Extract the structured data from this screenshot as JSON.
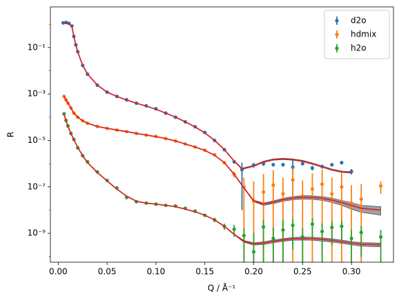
{
  "chart_data": {
    "type": "errorbar",
    "xlabel": "Q / Å⁻¹",
    "ylabel": "R",
    "log_y": true,
    "xlim": [
      -0.008,
      0.343
    ],
    "ylim": [
      5.7e-11,
      5.6
    ],
    "xticks": [
      {
        "value": 0,
        "label": "0.00"
      },
      0.05,
      {
        "value": 0.1,
        "label": "0.10"
      },
      0.15,
      {
        "value": 0.2,
        "label": "0.20"
      },
      0.25,
      {
        "value": 0.3,
        "label": "0.30"
      }
    ],
    "yticks": [
      {
        "value": 0.1,
        "label": "10⁻¹"
      },
      {
        "value": 0.001,
        "label": "10⁻³"
      },
      {
        "value": 1e-05,
        "label": "10⁻⁵"
      },
      {
        "value": 1e-07,
        "label": "10⁻⁷"
      },
      {
        "value": 1e-09,
        "label": "10⁻⁹"
      }
    ],
    "yminorticks": [
      1,
      0.01,
      0.0001,
      1e-06,
      1e-08,
      1e-10
    ],
    "legend": "upper right",
    "fit_color": "#d62728",
    "band_color": "#808080",
    "series": [
      {
        "name": "d2o",
        "color": "#1f77b4",
        "x": [
          0.005,
          0.008,
          0.011,
          0.014,
          0.016,
          0.018,
          0.02,
          0.025,
          0.03,
          0.04,
          0.05,
          0.06,
          0.07,
          0.08,
          0.09,
          0.1,
          0.11,
          0.12,
          0.13,
          0.14,
          0.15,
          0.16,
          0.17,
          0.18,
          0.188,
          0.2,
          0.21,
          0.22,
          0.23,
          0.24,
          0.25,
          0.26,
          0.27,
          0.28,
          0.29,
          0.3
        ],
        "values": [
          1.15,
          1.2,
          1.1,
          0.85,
          0.3,
          0.13,
          0.066,
          0.017,
          0.0071,
          0.0024,
          0.0012,
          0.00079,
          0.00056,
          0.0004,
          0.00031,
          0.00023,
          0.00015,
          0.0001,
          6.3e-05,
          3.9e-05,
          2.2e-05,
          1e-05,
          4e-06,
          1.2e-06,
          5.5e-07,
          8.7e-07,
          1e-06,
          9e-07,
          9e-07,
          7e-07,
          1e-06,
          6.5e-07,
          7.5e-07,
          9e-07,
          1.1e-06,
          4.6e-07
        ],
        "yerr": [
          0.15,
          0.15,
          0.1,
          0.05,
          0.02,
          0.008,
          0.003,
          0.0006,
          0.0002,
          6e-05,
          3e-05,
          2e-05,
          1.4e-05,
          1e-05,
          8e-06,
          6e-06,
          4e-06,
          3e-06,
          2e-06,
          1.2e-06,
          8e-07,
          4e-07,
          2e-07,
          1.2e-07,
          5.4e-07,
          2e-07,
          2e-07,
          1.5e-07,
          1.5e-07,
          6.9e-07,
          1.5e-07,
          1.5e-07,
          1.5e-07,
          1.5e-07,
          1.5e-07,
          1.2e-07
        ],
        "fit": [
          1.1,
          1.1,
          1.05,
          0.8,
          0.3,
          0.13,
          0.065,
          0.017,
          0.0072,
          0.0024,
          0.0012,
          0.00078,
          0.00055,
          0.0004,
          0.0003,
          0.00022,
          0.00015,
          0.0001,
          6.3e-05,
          3.8e-05,
          2.1e-05,
          1e-05,
          4e-06,
          1.3e-06,
          6e-07,
          8e-07,
          1.2e-06,
          1.5e-06,
          1.6e-06,
          1.5e-06,
          1.3e-06,
          1e-06,
          7.5e-07,
          5.5e-07,
          4.5e-07,
          4.2e-07
        ],
        "fit_err": [
          0.02,
          0.02,
          0.02,
          0.02,
          0.006,
          0.003,
          0.0013,
          0.0003,
          0.00014,
          5e-05,
          2.4e-05,
          1.6e-05,
          1.1e-05,
          8e-06,
          6e-06,
          4.4e-06,
          3e-06,
          2e-06,
          1.3e-06,
          8e-07,
          4e-07,
          2e-07,
          8e-08,
          5e-08,
          4e-08,
          5e-08,
          8e-08,
          1e-07,
          1.1e-07,
          1e-07,
          9e-08,
          7e-08,
          5e-08,
          4e-08,
          3e-08,
          3e-08
        ]
      },
      {
        "name": "hdmix",
        "color": "#ff7f0e",
        "x": [
          0.006,
          0.008,
          0.01,
          0.013,
          0.016,
          0.02,
          0.025,
          0.03,
          0.04,
          0.05,
          0.06,
          0.07,
          0.08,
          0.09,
          0.1,
          0.11,
          0.12,
          0.13,
          0.14,
          0.15,
          0.16,
          0.17,
          0.18,
          0.19,
          0.2,
          0.21,
          0.22,
          0.23,
          0.24,
          0.25,
          0.26,
          0.27,
          0.28,
          0.29,
          0.3,
          0.31,
          0.33
        ],
        "values": [
          0.00079,
          0.00055,
          0.0004,
          0.00025,
          0.00015,
          0.0001,
          7e-05,
          5.5e-05,
          4e-05,
          3.3e-05,
          2.8e-05,
          2.4e-05,
          2e-05,
          1.7e-05,
          1.5e-05,
          1.2e-05,
          9.5e-06,
          7e-06,
          5.2e-06,
          3.8e-06,
          2.4e-06,
          1.1e-06,
          3.5e-07,
          1e-07,
          2.5e-08,
          6e-08,
          1.2e-07,
          5e-08,
          2e-07,
          4e-08,
          8e-08,
          1.3e-07,
          5e-08,
          1e-07,
          2e-08,
          3e-08,
          1.1e-07
        ],
        "yerr": [
          0.00015,
          8e-05,
          5e-05,
          3e-05,
          1.5e-05,
          8e-06,
          5e-06,
          3e-06,
          2e-06,
          1.5e-06,
          1.2e-06,
          1e-06,
          9e-07,
          8e-07,
          7e-07,
          6e-07,
          5e-07,
          4e-07,
          3e-07,
          2.5e-07,
          2e-07,
          1.5e-07,
          1e-07,
          1.5e-07,
          1.5e-07,
          3e-07,
          4e-07,
          2e-07,
          5e-07,
          1.5e-07,
          3e-07,
          4e-07,
          2e-07,
          3e-07,
          1e-07,
          1e-07,
          6e-08
        ],
        "fit": [
          0.0008,
          0.00056,
          0.0004,
          0.00025,
          0.00015,
          0.0001,
          7e-05,
          5.5e-05,
          4e-05,
          3.3e-05,
          2.8e-05,
          2.4e-05,
          2e-05,
          1.7e-05,
          1.45e-05,
          1.2e-05,
          9.5e-06,
          7e-06,
          5.2e-06,
          3.7e-06,
          2.3e-06,
          1.1e-06,
          3.5e-07,
          9e-08,
          2.5e-08,
          1.8e-08,
          2.2e-08,
          2.8e-08,
          3.3e-08,
          3.6e-08,
          3.5e-08,
          3.2e-08,
          2.7e-08,
          2.1e-08,
          1.6e-08,
          1.2e-08,
          1e-08
        ],
        "fit_err": [
          1.6e-05,
          1.1e-05,
          8e-06,
          5e-06,
          3e-06,
          2e-06,
          1.4e-06,
          1.1e-06,
          8e-07,
          6.6e-07,
          5.6e-07,
          4.8e-07,
          4e-07,
          3.4e-07,
          2.9e-07,
          2.4e-07,
          1.9e-07,
          1.4e-07,
          1e-07,
          7.4e-08,
          4.6e-08,
          2.2e-08,
          1e-08,
          4e-09,
          2e-09,
          2e-09,
          3e-09,
          4e-09,
          5e-09,
          6e-09,
          6e-09,
          6e-09,
          6e-09,
          5e-09,
          5e-09,
          4e-09,
          4e-09
        ]
      },
      {
        "name": "h2o",
        "color": "#2ca02c",
        "x": [
          0.006,
          0.008,
          0.01,
          0.013,
          0.016,
          0.02,
          0.025,
          0.03,
          0.04,
          0.05,
          0.06,
          0.07,
          0.08,
          0.09,
          0.1,
          0.11,
          0.12,
          0.13,
          0.14,
          0.15,
          0.16,
          0.17,
          0.18,
          0.19,
          0.2,
          0.21,
          0.22,
          0.23,
          0.24,
          0.25,
          0.26,
          0.27,
          0.28,
          0.29,
          0.3,
          0.31,
          0.33
        ],
        "values": [
          0.00014,
          7.3e-05,
          4.2e-05,
          2e-05,
          1.1e-05,
          4.8e-06,
          2.2e-06,
          1.2e-06,
          4.4e-07,
          1.9e-07,
          9e-08,
          3.5e-08,
          2.3e-08,
          2e-08,
          1.8e-08,
          1.6e-08,
          1.5e-08,
          1.2e-08,
          9e-09,
          6e-09,
          3.8e-09,
          2e-09,
          1.5e-09,
          8e-10,
          1.6e-10,
          1.9e-09,
          6e-10,
          1.4e-09,
          2.2e-09,
          7e-10,
          2.5e-09,
          1.2e-09,
          1.8e-09,
          2e-09,
          6e-10,
          1.1e-09,
          7e-10
        ],
        "yerr": [
          1.5e-05,
          7e-06,
          4e-06,
          2e-06,
          1e-06,
          4e-07,
          2e-07,
          1e-07,
          4e-08,
          2e-08,
          1e-08,
          4e-09,
          3e-09,
          2e-09,
          2e-09,
          2e-09,
          2e-09,
          1.5e-09,
          1.2e-09,
          1e-09,
          8e-10,
          6e-10,
          8e-10,
          9e-10,
          9e-10,
          2e-09,
          1.2e-09,
          2.5e-09,
          2e-09,
          1e-09,
          2e-09,
          1.5e-09,
          1.5e-09,
          1.5e-09,
          8e-10,
          1e-09,
          7e-10
        ],
        "fit": [
          0.00013,
          7e-05,
          4e-05,
          2e-05,
          1.1e-05,
          5e-06,
          2.2e-06,
          1.1e-06,
          4.2e-07,
          1.8e-07,
          8e-08,
          4e-08,
          2.4e-08,
          2e-08,
          1.8e-08,
          1.6e-08,
          1.4e-08,
          1.1e-08,
          8.5e-09,
          6e-09,
          3.8e-09,
          2e-09,
          9e-10,
          4.5e-10,
          3.5e-10,
          3.8e-10,
          4.5e-10,
          5.2e-10,
          5.8e-10,
          6e-10,
          5.9e-10,
          5.5e-10,
          5e-10,
          4.4e-10,
          3.8e-10,
          3.4e-10,
          3.2e-10
        ],
        "fit_err": [
          2.6e-06,
          1.4e-06,
          8e-07,
          4e-07,
          2.2e-07,
          1e-07,
          4.4e-08,
          2.2e-08,
          8.4e-09,
          3.6e-09,
          1.6e-09,
          8e-10,
          5e-10,
          4e-10,
          3.6e-10,
          3.2e-10,
          2.8e-10,
          2.2e-10,
          1.7e-10,
          1.2e-10,
          8e-11,
          5e-11,
          4e-11,
          4e-11,
          4e-11,
          5e-11,
          6e-11,
          7e-11,
          8e-11,
          9e-11,
          9e-11,
          9e-11,
          8e-11,
          7e-11,
          6e-11,
          6e-11,
          6e-11
        ]
      }
    ]
  }
}
